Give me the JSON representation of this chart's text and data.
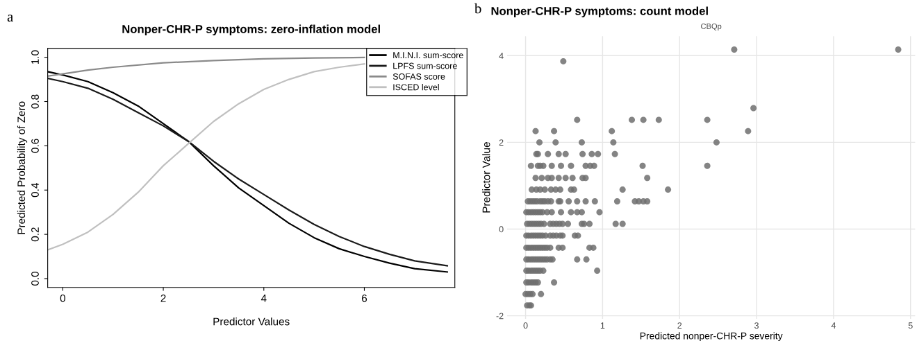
{
  "chart_data": [
    {
      "type": "line",
      "title": "Nonper-CHR-P symptoms: zero-inflation model",
      "xlabel": "Predictor Values",
      "ylabel": "Predicted Probability of Zero",
      "annotations": [
        "a"
      ],
      "xlim": [
        -0.3,
        7.8
      ],
      "ylim": [
        -0.04,
        1.04
      ],
      "xticks": [
        0,
        2,
        4,
        6
      ],
      "yticks": [
        {
          "value": 0,
          "label": "0.0"
        },
        {
          "value": 0.2,
          "label": "0.2"
        },
        {
          "value": 0.4,
          "label": "0.4"
        },
        {
          "value": 0.6,
          "label": "0.6"
        },
        {
          "value": 0.8,
          "label": "0.8"
        },
        {
          "value": 1,
          "label": "1.0"
        }
      ],
      "grid": false,
      "legend": "top right",
      "line_style": "solid",
      "series": [
        {
          "name": "M.I.N.I. sum-score",
          "color": "#000000",
          "x": [
            -0.3,
            0,
            0.5,
            1,
            1.5,
            2,
            2.5,
            3,
            3.5,
            4,
            4.5,
            5,
            5.5,
            6,
            6.5,
            7,
            7.65
          ],
          "values": [
            0.935,
            0.92,
            0.89,
            0.84,
            0.78,
            0.7,
            0.62,
            0.51,
            0.41,
            0.33,
            0.25,
            0.185,
            0.135,
            0.1,
            0.07,
            0.045,
            0.03
          ]
        },
        {
          "name": "LPFS sum-score",
          "color": "#1a1a1a",
          "x": [
            -0.3,
            0,
            0.5,
            1,
            1.5,
            2,
            2.5,
            3,
            3.5,
            4,
            4.5,
            5,
            5.5,
            6,
            6.5,
            7,
            7.65
          ],
          "values": [
            0.905,
            0.89,
            0.86,
            0.81,
            0.75,
            0.69,
            0.62,
            0.53,
            0.45,
            0.38,
            0.31,
            0.245,
            0.19,
            0.145,
            0.11,
            0.08,
            0.058
          ]
        },
        {
          "name": "SOFAS score",
          "color": "#8a8a8a",
          "x": [
            -0.3,
            0,
            0.5,
            1,
            2,
            3,
            4,
            5,
            6
          ],
          "values": [
            0.915,
            0.925,
            0.942,
            0.955,
            0.975,
            0.985,
            0.993,
            0.997,
            0.999
          ]
        },
        {
          "name": "ISCED level",
          "color": "#c0c0c0",
          "x": [
            -0.3,
            0,
            0.5,
            1,
            1.5,
            2,
            2.5,
            3,
            3.5,
            4,
            4.5,
            5,
            5.5,
            6
          ],
          "values": [
            0.13,
            0.155,
            0.21,
            0.29,
            0.39,
            0.51,
            0.61,
            0.71,
            0.79,
            0.855,
            0.9,
            0.935,
            0.955,
            0.97
          ]
        }
      ]
    },
    {
      "type": "scatter",
      "title": "Nonper-CHR-P symptoms: count model",
      "subtitle": "CBQp",
      "xlabel": "Predicted nonper-CHR-P severity",
      "ylabel": "Predictor Value",
      "annotations": [
        "b"
      ],
      "xlim": [
        -0.24,
        5.06
      ],
      "ylim": [
        -2.07,
        4.45
      ],
      "xticks": [
        0,
        1,
        2,
        3,
        4,
        5
      ],
      "yticks": [
        -2,
        0,
        2,
        4
      ],
      "grid": true,
      "marker": "circle",
      "series": [
        {
          "color": "#6f6f6f",
          "x": [
            2.71,
            4.84,
            0.49,
            2.96,
            0.67,
            1.38,
            1.53,
            1.73,
            2.36,
            0.13,
            0.37,
            1.12,
            2.89,
            0.18,
            0.39,
            0.73,
            1.14,
            2.48,
            0.14,
            0.16,
            0.29,
            0.43,
            0.52,
            0.74,
            0.86,
            0.94,
            1.16,
            0.07,
            0.16,
            0.19,
            0.23,
            0.34,
            0.46,
            0.59,
            0.78,
            0.84,
            0.89,
            1.52,
            2.36,
            0.13,
            0.21,
            0.29,
            0.34,
            0.43,
            0.52,
            0.61,
            0.74,
            0.78,
            1.58,
            0.08,
            0.14,
            0.19,
            0.25,
            0.33,
            0.39,
            0.45,
            0.59,
            0.63,
            1.26,
            1.85,
            0.03,
            0.06,
            0.09,
            0.12,
            0.15,
            0.19,
            0.22,
            0.25,
            0.29,
            0.33,
            0.43,
            0.45,
            0.56,
            0.67,
            0.78,
            0.9,
            1.19,
            1.42,
            1.47,
            1.53,
            1.58,
            0.01,
            0.04,
            0.07,
            0.1,
            0.13,
            0.16,
            0.19,
            0.22,
            0.28,
            0.34,
            0.46,
            0.59,
            0.67,
            0.73,
            0.96,
            0.02,
            0.05,
            0.08,
            0.11,
            0.14,
            0.17,
            0.2,
            0.24,
            0.32,
            0.36,
            0.4,
            0.44,
            0.48,
            0.55,
            0.73,
            0.76,
            0.83,
            1.17,
            1.26,
            0.01,
            0.04,
            0.07,
            0.1,
            0.13,
            0.16,
            0.19,
            0.22,
            0.26,
            0.32,
            0.36,
            0.4,
            0.45,
            0.48,
            0.64,
            0.68,
            0.01,
            0.04,
            0.07,
            0.1,
            0.13,
            0.16,
            0.19,
            0.22,
            0.25,
            0.28,
            0.32,
            0.43,
            0.48,
            0.83,
            0.88,
            0.01,
            0.04,
            0.07,
            0.1,
            0.13,
            0.16,
            0.19,
            0.22,
            0.25,
            0.28,
            0.32,
            0.35,
            0.67,
            0.79,
            0.01,
            0.04,
            0.07,
            0.1,
            0.13,
            0.16,
            0.19,
            0.23,
            0.93,
            0.01,
            0.04,
            0.07,
            0.1,
            0.13,
            0.16,
            0.37,
            0.0,
            0.03,
            0.06,
            0.09,
            0.2,
            0.02,
            0.05,
            0.07
          ],
          "values": [
            4.14,
            4.14,
            3.87,
            2.79,
            2.52,
            2.52,
            2.52,
            2.52,
            2.52,
            2.26,
            2.26,
            2.26,
            2.26,
            2.0,
            2.0,
            2.0,
            2.0,
            2.0,
            1.73,
            1.73,
            1.73,
            1.73,
            1.73,
            1.73,
            1.73,
            1.73,
            1.73,
            1.46,
            1.46,
            1.46,
            1.46,
            1.46,
            1.46,
            1.46,
            1.46,
            1.46,
            1.46,
            1.46,
            1.46,
            1.18,
            1.18,
            1.18,
            1.18,
            1.18,
            1.18,
            1.18,
            1.18,
            1.18,
            1.18,
            0.91,
            0.91,
            0.91,
            0.91,
            0.91,
            0.91,
            0.91,
            0.91,
            0.91,
            0.91,
            0.91,
            0.64,
            0.64,
            0.64,
            0.64,
            0.64,
            0.64,
            0.64,
            0.64,
            0.64,
            0.64,
            0.64,
            0.64,
            0.64,
            0.64,
            0.64,
            0.64,
            0.64,
            0.64,
            0.64,
            0.64,
            0.64,
            0.39,
            0.39,
            0.39,
            0.39,
            0.39,
            0.39,
            0.39,
            0.39,
            0.39,
            0.39,
            0.39,
            0.39,
            0.39,
            0.39,
            0.39,
            0.12,
            0.12,
            0.12,
            0.12,
            0.12,
            0.12,
            0.12,
            0.12,
            0.12,
            0.12,
            0.12,
            0.12,
            0.12,
            0.12,
            0.12,
            0.12,
            0.12,
            0.12,
            0.12,
            -0.15,
            -0.15,
            -0.15,
            -0.15,
            -0.15,
            -0.15,
            -0.15,
            -0.15,
            -0.15,
            -0.15,
            -0.15,
            -0.15,
            -0.15,
            -0.15,
            -0.15,
            -0.15,
            -0.43,
            -0.43,
            -0.43,
            -0.43,
            -0.43,
            -0.43,
            -0.43,
            -0.43,
            -0.43,
            -0.43,
            -0.43,
            -0.43,
            -0.43,
            -0.43,
            -0.43,
            -0.7,
            -0.7,
            -0.7,
            -0.7,
            -0.7,
            -0.7,
            -0.7,
            -0.7,
            -0.7,
            -0.7,
            -0.7,
            -0.7,
            -0.7,
            -0.7,
            -0.96,
            -0.96,
            -0.96,
            -0.96,
            -0.96,
            -0.96,
            -0.96,
            -0.96,
            -0.96,
            -1.23,
            -1.23,
            -1.23,
            -1.23,
            -1.23,
            -1.23,
            -1.23,
            -1.5,
            -1.5,
            -1.5,
            -1.5,
            -1.5,
            -1.76,
            -1.76,
            -1.76
          ]
        }
      ]
    }
  ]
}
